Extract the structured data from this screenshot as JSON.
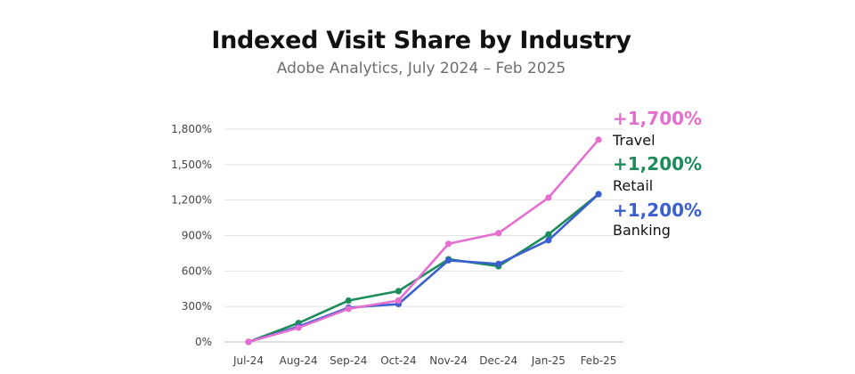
{
  "chart_data": {
    "type": "line",
    "title": "Indexed Visit Share by Industry",
    "subtitle": "Adobe Analytics, July 2024 – Feb 2025",
    "xlabel": "",
    "ylabel": "",
    "categories": [
      "Jul-24",
      "Aug-24",
      "Sep-24",
      "Oct-24",
      "Nov-24",
      "Dec-24",
      "Jan-25",
      "Feb-25"
    ],
    "yticks": [
      "0%",
      "300%",
      "600%",
      "900%",
      "1,200%",
      "1,500%",
      "1,800%"
    ],
    "ylim": [
      0,
      1800
    ],
    "grid": "horizontal",
    "series": [
      {
        "name": "Travel",
        "end_label": "+1,700%",
        "color": "#e46fcf",
        "values": [
          0,
          120,
          280,
          350,
          830,
          920,
          1220,
          1710
        ]
      },
      {
        "name": "Retail",
        "end_label": "+1,200%",
        "color": "#1c8c5a",
        "values": [
          0,
          160,
          350,
          430,
          700,
          640,
          910,
          1250
        ]
      },
      {
        "name": "Banking",
        "end_label": "+1,200%",
        "color": "#3b5fcf",
        "values": [
          0,
          130,
          290,
          320,
          690,
          660,
          860,
          1250
        ]
      }
    ]
  }
}
